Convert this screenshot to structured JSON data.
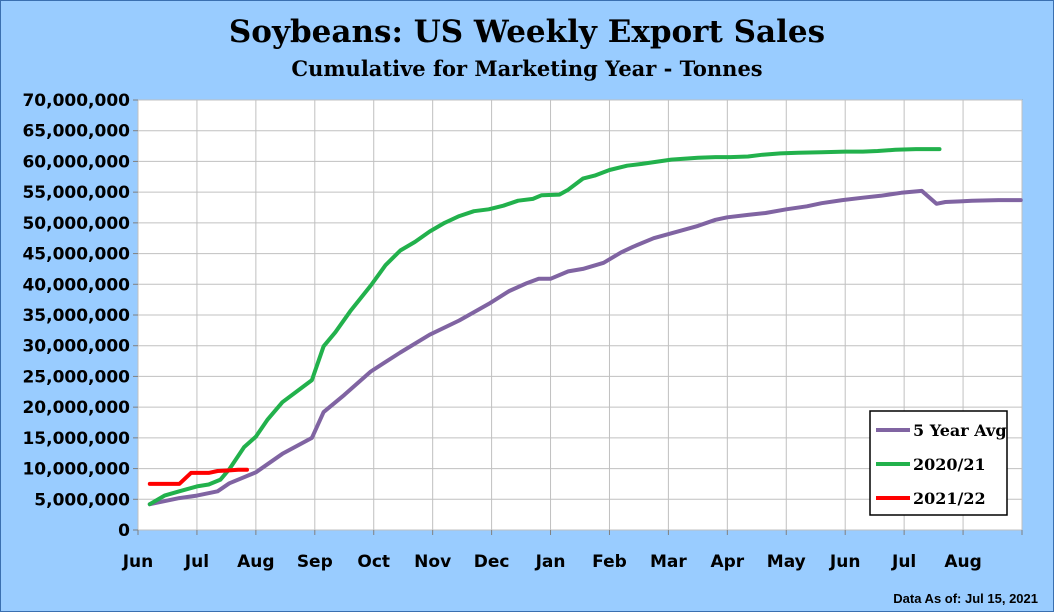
{
  "title": "Soybeans: US Weekly Export Sales",
  "subtitle": "Cumulative for Marketing Year - Tonnes",
  "footnote": "Data As of: Jul 15, 2021",
  "chart_data": {
    "type": "line",
    "xlabel": "",
    "ylabel": "",
    "ylim": [
      0,
      70000000
    ],
    "yticks": [
      0,
      5000000,
      10000000,
      15000000,
      20000000,
      25000000,
      30000000,
      35000000,
      40000000,
      45000000,
      50000000,
      55000000,
      60000000,
      65000000,
      70000000
    ],
    "ytick_labels": [
      "0",
      "5,000,000",
      "10,000,000",
      "15,000,000",
      "20,000,000",
      "25,000,000",
      "30,000,000",
      "35,000,000",
      "40,000,000",
      "45,000,000",
      "50,000,000",
      "55,000,000",
      "60,000,000",
      "65,000,000",
      "70,000,000"
    ],
    "xticks": [
      "Jun",
      "Jul",
      "Aug",
      "Sep",
      "Oct",
      "Nov",
      "Dec",
      "Jan",
      "Feb",
      "Mar",
      "Apr",
      "May",
      "Jun",
      "Jul",
      "Aug"
    ],
    "xlim": [
      0,
      15
    ],
    "grid": true,
    "legend_position": "bottom-right",
    "series": [
      {
        "name": "5 Year Avg",
        "color": "#8064a2",
        "x": [
          0.2,
          0.7,
          1.0,
          1.35,
          1.55,
          2.0,
          2.45,
          2.95,
          3.15,
          3.5,
          3.95,
          4.45,
          4.95,
          5.45,
          5.95,
          6.3,
          6.6,
          6.8,
          7.0,
          7.3,
          7.55,
          7.9,
          8.2,
          8.4,
          8.75,
          9.05,
          9.5,
          9.8,
          10.0,
          10.35,
          10.65,
          11.0,
          11.35,
          11.6,
          11.95,
          12.3,
          12.6,
          12.95,
          13.3,
          13.55,
          13.7,
          13.95,
          14.15,
          14.6,
          14.98
        ],
        "y": [
          4200000,
          5200000,
          5600000,
          6300000,
          7600000,
          9400000,
          12400000,
          15000000,
          19200000,
          22000000,
          25800000,
          28900000,
          31800000,
          34100000,
          36800000,
          38900000,
          40200000,
          40900000,
          40900000,
          42100000,
          42500000,
          43500000,
          45200000,
          46100000,
          47500000,
          48300000,
          49500000,
          50500000,
          50900000,
          51300000,
          51600000,
          52200000,
          52700000,
          53200000,
          53700000,
          54100000,
          54400000,
          54900000,
          55200000,
          53100000,
          53400000,
          53500000,
          53600000,
          53700000,
          53700000
        ]
      },
      {
        "name": "2020/21",
        "color": "#22b14c",
        "x": [
          0.2,
          0.45,
          0.7,
          1.0,
          1.2,
          1.4,
          1.55,
          1.8,
          2.0,
          2.2,
          2.45,
          2.95,
          3.15,
          3.35,
          3.6,
          3.95,
          4.2,
          4.45,
          4.7,
          4.95,
          5.2,
          5.45,
          5.7,
          5.95,
          6.2,
          6.45,
          6.7,
          6.85,
          7.15,
          7.3,
          7.55,
          7.75,
          8.0,
          8.3,
          8.55,
          9.05,
          9.5,
          9.8,
          10.05,
          10.35,
          10.6,
          10.9,
          11.2,
          11.6,
          12.0,
          12.3,
          12.55,
          12.85,
          13.2,
          13.45,
          13.6
        ],
        "y": [
          4200000,
          5600000,
          6300000,
          7100000,
          7400000,
          8200000,
          9900000,
          13500000,
          15200000,
          18000000,
          20800000,
          24400000,
          29900000,
          32200000,
          35600000,
          39800000,
          43100000,
          45500000,
          46900000,
          48600000,
          50000000,
          51100000,
          51900000,
          52200000,
          52800000,
          53600000,
          53900000,
          54500000,
          54600000,
          55400000,
          57200000,
          57700000,
          58600000,
          59300000,
          59600000,
          60300000,
          60600000,
          60700000,
          60700000,
          60800000,
          61100000,
          61300000,
          61400000,
          61500000,
          61600000,
          61600000,
          61700000,
          61900000,
          62000000,
          62000000,
          62000000
        ]
      },
      {
        "name": "2021/22",
        "color": "#ff0000",
        "x": [
          0.2,
          0.7,
          0.9,
          1.2,
          1.35,
          1.55,
          1.7,
          1.85
        ],
        "y": [
          7500000,
          7500000,
          9300000,
          9300000,
          9600000,
          9700000,
          9800000,
          9800000
        ]
      }
    ]
  }
}
